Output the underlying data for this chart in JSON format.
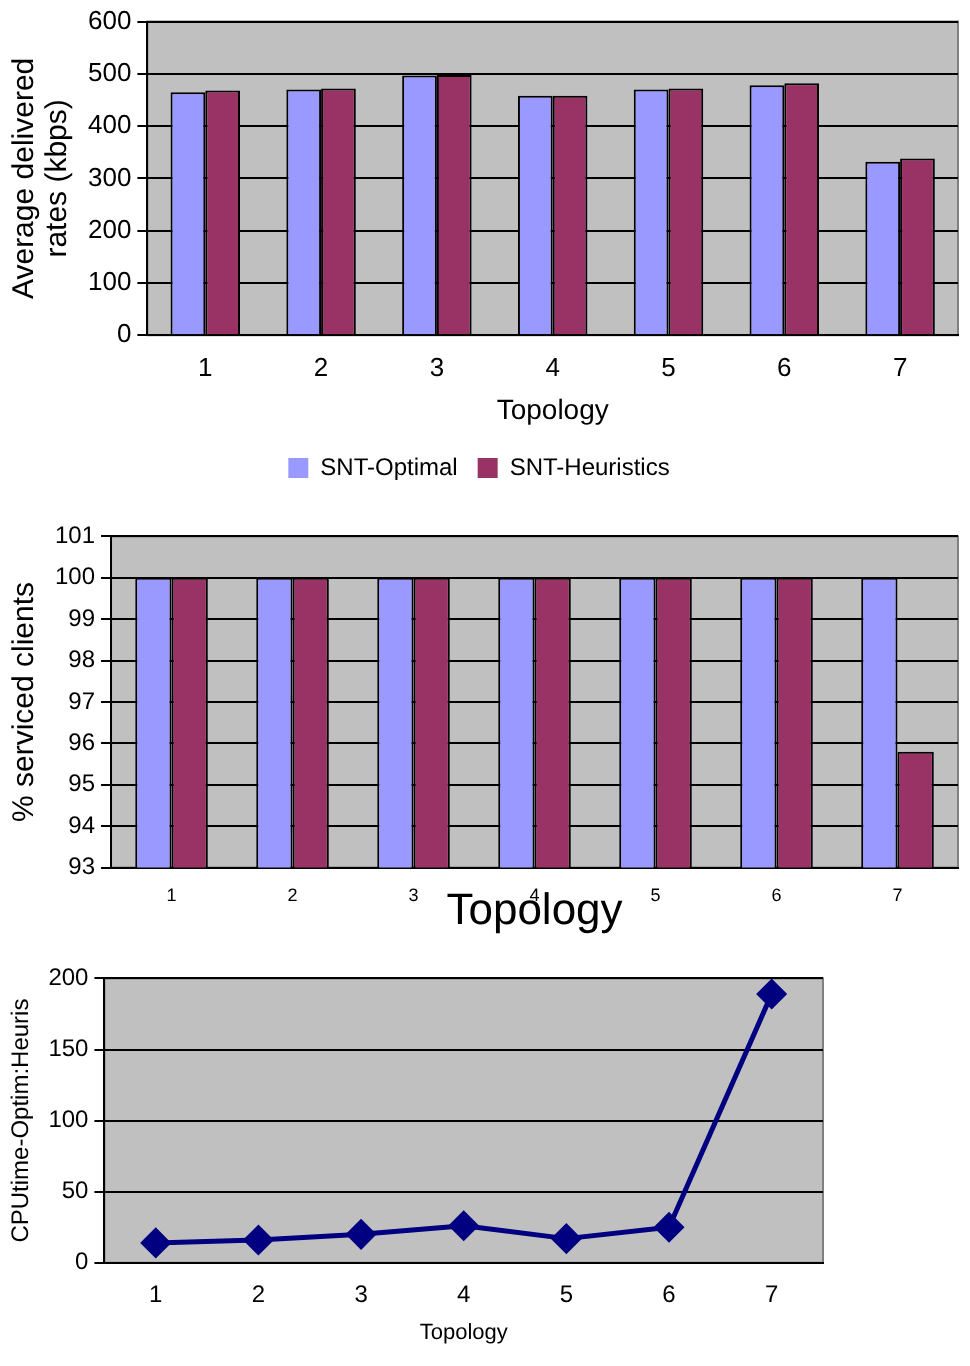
{
  "chart_data": [
    {
      "type": "bar",
      "xlabel": "Topology",
      "ylabel": "Average delivered rates (kbps)",
      "categories": [
        "1",
        "2",
        "3",
        "4",
        "5",
        "6",
        "7"
      ],
      "series": [
        {
          "name": "SNT-Optimal",
          "color": "#9999ff",
          "values": [
            465,
            470,
            497,
            458,
            470,
            478,
            332
          ]
        },
        {
          "name": "SNT-Heuristics",
          "color": "#993366",
          "values": [
            468,
            472,
            498,
            458,
            472,
            482,
            338
          ]
        }
      ],
      "ylim": [
        0,
        600
      ],
      "yticks": [
        0,
        100,
        200,
        300,
        400,
        500,
        600
      ],
      "grid": "y",
      "legend": "bottom"
    },
    {
      "type": "bar",
      "xlabel": "Topology",
      "ylabel": "% serviced clients",
      "categories": [
        "1",
        "2",
        "3",
        "4",
        "5",
        "6",
        "7"
      ],
      "series": [
        {
          "color": "#9999ff",
          "values": [
            100,
            100,
            100,
            100,
            100,
            100,
            100
          ]
        },
        {
          "color": "#993366",
          "values": [
            100,
            100,
            100,
            100,
            100,
            100,
            95.8
          ]
        }
      ],
      "ylim": [
        93,
        101
      ],
      "yticks": [
        93,
        94,
        95,
        96,
        97,
        98,
        99,
        100,
        101
      ],
      "grid": "y"
    },
    {
      "type": "line",
      "xlabel": "Topology",
      "ylabel": "CPUtime-Optim:Heuris",
      "categories": [
        "1",
        "2",
        "3",
        "4",
        "5",
        "6",
        "7"
      ],
      "series": [
        {
          "color": "#000080",
          "values": [
            14,
            16,
            20,
            26,
            17,
            25,
            189
          ]
        }
      ],
      "ylim": [
        0,
        200
      ],
      "yticks": [
        0,
        50,
        100,
        150,
        200
      ],
      "grid": "y",
      "marker": "diamond"
    }
  ]
}
